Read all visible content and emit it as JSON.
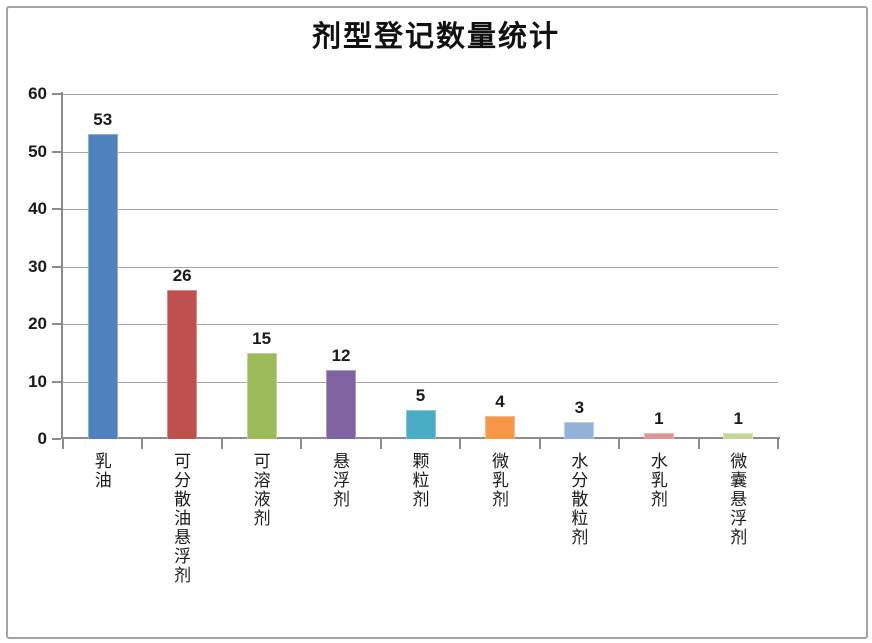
{
  "chart_data": {
    "type": "bar",
    "title": "剂型登记数量统计",
    "categories": [
      "乳油",
      "可分散油悬浮剂",
      "可溶液剂",
      "悬浮剂",
      "颗粒剂",
      "微乳剂",
      "水分散粒剂",
      "水乳剂",
      "微囊悬浮剂"
    ],
    "values": [
      53,
      26,
      15,
      12,
      5,
      4,
      3,
      1,
      1
    ],
    "bar_colors": [
      "#4F81BD",
      "#C0504D",
      "#9BBB59",
      "#8064A2",
      "#4BACC6",
      "#F79646",
      "#95B3D7",
      "#D99694",
      "#C3D69B"
    ],
    "xlabel": "",
    "ylabel": "",
    "ylim": [
      0,
      60
    ],
    "yticks": [
      0,
      10,
      20,
      30,
      40,
      50,
      60
    ],
    "grid": "horizontal-major",
    "gridline_color": "#a6a6a6",
    "axis_color": "#8c8c8c",
    "legend": "none",
    "data_labels": "outside-end",
    "label_color": "#1a1a1a"
  }
}
